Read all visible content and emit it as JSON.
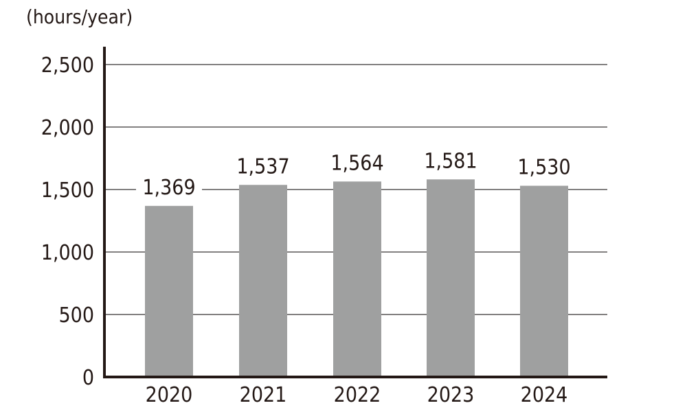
{
  "chart_data": {
    "type": "bar",
    "unit_label": "(hours/year)",
    "categories": [
      "2020",
      "2021",
      "2022",
      "2023",
      "2024"
    ],
    "values": [
      1369,
      1537,
      1564,
      1581,
      1530
    ],
    "data_labels": [
      "1,369",
      "1,537",
      "1,564",
      "1,581",
      "1,530"
    ],
    "yticks": [
      0,
      500,
      1000,
      1500,
      2000,
      2500
    ],
    "ytick_labels": [
      "0",
      "500",
      "1,000",
      "1,500",
      "2,000",
      "2,500"
    ],
    "ylim": [
      0,
      2500
    ],
    "grid": true,
    "legend": "none",
    "colors": {
      "bar": "#9fa0a0",
      "axis": "#231815",
      "grid": "#595757",
      "text": "#231815"
    }
  }
}
